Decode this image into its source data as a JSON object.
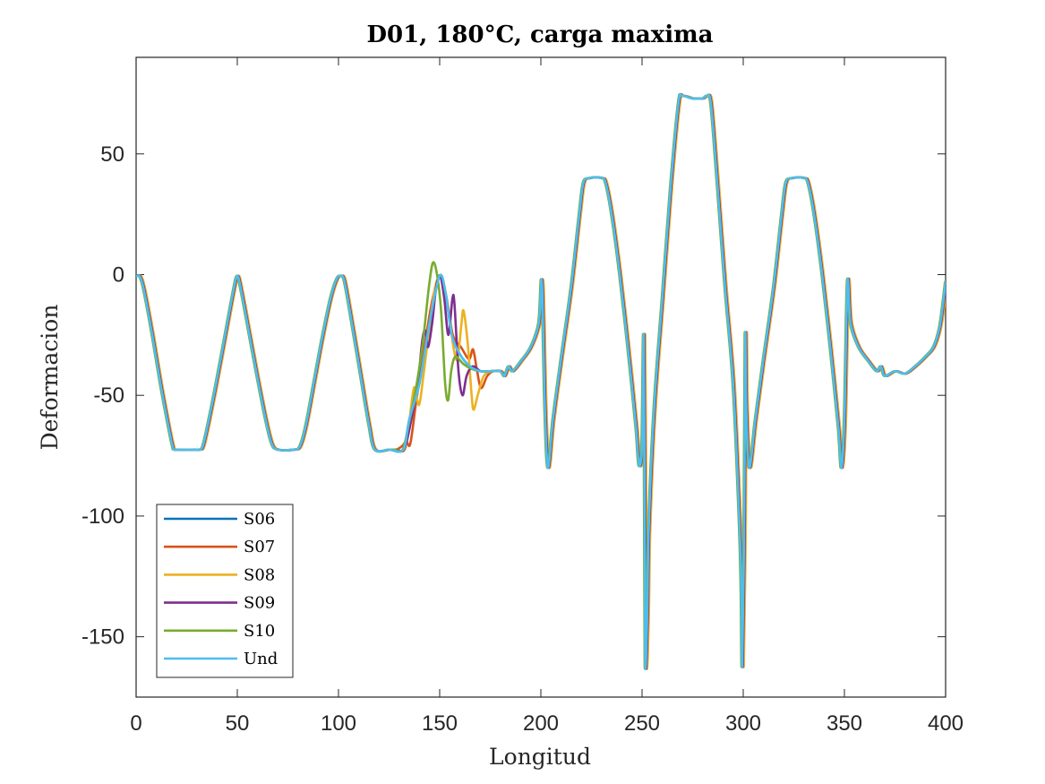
{
  "chart_data": {
    "type": "line",
    "title": "D01, 180°C, carga maxima",
    "xlabel": "Longitud",
    "ylabel": "Deformacion",
    "xlim": [
      0,
      400
    ],
    "ylim": [
      -175,
      90
    ],
    "xticks": [
      0,
      50,
      100,
      150,
      200,
      250,
      300,
      350,
      400
    ],
    "yticks": [
      -150,
      -100,
      -50,
      0,
      50
    ],
    "xtick_labels": [
      "0",
      "50",
      "100",
      "150",
      "200",
      "250",
      "300",
      "350",
      "400"
    ],
    "ytick_labels": [
      "-150",
      "-100",
      "-50",
      "0",
      "50"
    ],
    "grid": false,
    "legend_position": "bottom-left",
    "base_curve": [
      [
        0,
        -0.5
      ],
      [
        2,
        -1
      ],
      [
        4,
        -7
      ],
      [
        8,
        -25
      ],
      [
        12,
        -45
      ],
      [
        16,
        -63
      ],
      [
        18,
        -71
      ],
      [
        19,
        -72.5
      ],
      [
        25,
        -72.5
      ],
      [
        31,
        -72.5
      ],
      [
        33,
        -71
      ],
      [
        36,
        -60
      ],
      [
        40,
        -43
      ],
      [
        44,
        -25
      ],
      [
        48,
        -7
      ],
      [
        50,
        -0.5
      ],
      [
        52,
        -7
      ],
      [
        56,
        -25
      ],
      [
        60,
        -43
      ],
      [
        64,
        -60
      ],
      [
        67,
        -70
      ],
      [
        70,
        -72.5
      ],
      [
        78,
        -72.5
      ],
      [
        81,
        -71
      ],
      [
        84,
        -62
      ],
      [
        88,
        -44
      ],
      [
        92,
        -26
      ],
      [
        96,
        -10
      ],
      [
        99,
        -2
      ],
      [
        101,
        -0.5
      ],
      [
        103,
        -3
      ],
      [
        107,
        -22
      ],
      [
        111,
        -42
      ],
      [
        115,
        -62
      ],
      [
        118,
        -72.5
      ],
      [
        125,
        -72.5
      ],
      [
        132,
        -72.5
      ],
      [
        135,
        -60
      ],
      [
        140,
        -45
      ],
      [
        145,
        -20
      ],
      [
        150,
        -0.5
      ],
      [
        153,
        -8
      ],
      [
        156,
        -25
      ],
      [
        160,
        -33
      ],
      [
        165,
        -38
      ],
      [
        170,
        -40
      ],
      [
        175,
        -40
      ],
      [
        180,
        -40
      ],
      [
        182,
        -42
      ],
      [
        184,
        -38
      ],
      [
        186,
        -40
      ],
      [
        190,
        -36
      ],
      [
        195,
        -30
      ],
      [
        199,
        -20
      ],
      [
        200.5,
        -3
      ],
      [
        202,
        -55
      ],
      [
        203.5,
        -80
      ],
      [
        206,
        -60
      ],
      [
        210,
        -35
      ],
      [
        215,
        -5
      ],
      [
        219,
        25
      ],
      [
        221,
        38
      ],
      [
        224,
        40
      ],
      [
        230,
        40
      ],
      [
        232,
        38
      ],
      [
        235,
        25
      ],
      [
        239,
        0
      ],
      [
        243,
        -30
      ],
      [
        247,
        -63
      ],
      [
        248.5,
        -79
      ],
      [
        250,
        -70
      ],
      [
        250.8,
        -25
      ],
      [
        251.3,
        -100
      ],
      [
        251.6,
        -162
      ],
      [
        252.6,
        -140
      ],
      [
        253.3,
        -105
      ],
      [
        256,
        -55
      ],
      [
        260,
        -10
      ],
      [
        264,
        35
      ],
      [
        268,
        71
      ],
      [
        270,
        74
      ],
      [
        275,
        73
      ],
      [
        280,
        73
      ],
      [
        282,
        74
      ],
      [
        284,
        71
      ],
      [
        287,
        40
      ],
      [
        291,
        -5
      ],
      [
        295,
        -45
      ],
      [
        298,
        -100
      ],
      [
        299,
        -130
      ],
      [
        299.5,
        -162
      ],
      [
        300.5,
        -100
      ],
      [
        301,
        -25
      ],
      [
        301.5,
        -55
      ],
      [
        303,
        -80
      ],
      [
        306,
        -60
      ],
      [
        310,
        -35
      ],
      [
        315,
        -5
      ],
      [
        319,
        25
      ],
      [
        321,
        38
      ],
      [
        324,
        40
      ],
      [
        330,
        40
      ],
      [
        332,
        38
      ],
      [
        335,
        25
      ],
      [
        339,
        0
      ],
      [
        343,
        -30
      ],
      [
        347,
        -63
      ],
      [
        348.5,
        -80
      ],
      [
        350,
        -60
      ],
      [
        351.5,
        -3
      ],
      [
        353,
        -20
      ],
      [
        357,
        -30
      ],
      [
        362,
        -36
      ],
      [
        366,
        -40
      ],
      [
        368,
        -38
      ],
      [
        370,
        -42
      ],
      [
        375,
        -40
      ],
      [
        380,
        -41
      ],
      [
        385,
        -38
      ],
      [
        390,
        -34
      ],
      [
        394,
        -30
      ],
      [
        397,
        -22
      ],
      [
        399,
        -10
      ],
      [
        400,
        -3
      ]
    ],
    "series": [
      {
        "name": "S06",
        "color": "#0072BD",
        "offset_x": 0,
        "overrides": []
      },
      {
        "name": "S07",
        "color": "#D95319",
        "offset_x": 0.5,
        "overrides": [
          [
            128,
            -72.5
          ],
          [
            131,
            -71
          ],
          [
            133,
            -69
          ],
          [
            135,
            -70
          ],
          [
            138,
            -52
          ],
          [
            142,
            -30
          ],
          [
            146,
            -10
          ],
          [
            150,
            -0.5
          ],
          [
            153,
            -10
          ],
          [
            156,
            -25
          ],
          [
            160,
            -30
          ],
          [
            164,
            -35
          ],
          [
            166,
            -31
          ],
          [
            168,
            -40
          ],
          [
            170,
            -47
          ],
          [
            173,
            -42
          ],
          [
            176,
            -40
          ],
          [
            180,
            -40
          ]
        ]
      },
      {
        "name": "S08",
        "color": "#EDB120",
        "offset_x": 0.8,
        "overrides": [
          [
            128,
            -72.5
          ],
          [
            132,
            -72.5
          ],
          [
            134,
            -62
          ],
          [
            136,
            -49
          ],
          [
            137,
            -47
          ],
          [
            139,
            -54
          ],
          [
            141,
            -43
          ],
          [
            144,
            -23
          ],
          [
            147,
            -5
          ],
          [
            150,
            -0.5
          ],
          [
            153,
            -12
          ],
          [
            156,
            -30
          ],
          [
            158,
            -35
          ],
          [
            160,
            -20
          ],
          [
            161,
            -15
          ],
          [
            163,
            -28
          ],
          [
            165,
            -50
          ],
          [
            166,
            -56
          ],
          [
            168,
            -50
          ],
          [
            171,
            -42
          ],
          [
            175,
            -40
          ],
          [
            180,
            -40
          ]
        ]
      },
      {
        "name": "S09",
        "color": "#7E2F8E",
        "offset_x": 0.3,
        "overrides": [
          [
            128,
            -72.5
          ],
          [
            132,
            -72.5
          ],
          [
            135,
            -63
          ],
          [
            139,
            -44
          ],
          [
            141,
            -28
          ],
          [
            142.5,
            -23
          ],
          [
            144,
            -30
          ],
          [
            146,
            -20
          ],
          [
            148,
            -5
          ],
          [
            150,
            -0.5
          ],
          [
            152,
            -10
          ],
          [
            154,
            -25
          ],
          [
            156,
            -10
          ],
          [
            157,
            -12
          ],
          [
            159,
            -40
          ],
          [
            161,
            -50
          ],
          [
            163,
            -42
          ],
          [
            166,
            -38
          ],
          [
            170,
            -40
          ],
          [
            175,
            -40
          ],
          [
            180,
            -40
          ]
        ]
      },
      {
        "name": "S10",
        "color": "#77AC30",
        "offset_x": -0.3,
        "overrides": [
          [
            128,
            -72.5
          ],
          [
            132,
            -72.5
          ],
          [
            135,
            -62
          ],
          [
            139,
            -45
          ],
          [
            142,
            -28
          ],
          [
            145,
            -5
          ],
          [
            147,
            5
          ],
          [
            149,
            0
          ],
          [
            151,
            -15
          ],
          [
            153,
            -45
          ],
          [
            154.5,
            -52
          ],
          [
            156,
            -40
          ],
          [
            158,
            -34
          ],
          [
            162,
            -37
          ],
          [
            166,
            -39
          ],
          [
            170,
            -40
          ],
          [
            175,
            -40
          ],
          [
            180,
            -40
          ]
        ]
      },
      {
        "name": "Und",
        "color": "#4DBEEE",
        "offset_x": 0,
        "overrides": []
      }
    ]
  }
}
